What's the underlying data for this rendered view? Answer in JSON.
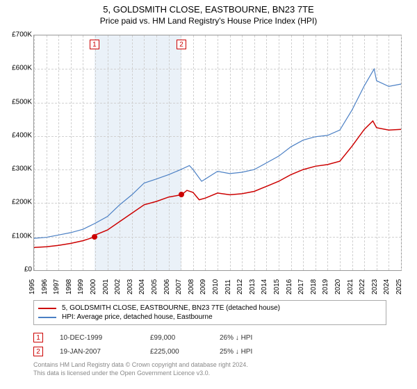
{
  "title": "5, GOLDSMITH CLOSE, EASTBOURNE, BN23 7TE",
  "subtitle": "Price paid vs. HM Land Registry's House Price Index (HPI)",
  "chart": {
    "type": "line",
    "ylim": [
      0,
      700000
    ],
    "ytick_step": 100000,
    "yticks": [
      "£0",
      "£100K",
      "£200K",
      "£300K",
      "£400K",
      "£500K",
      "£600K",
      "£700K"
    ],
    "xrange": [
      1995,
      2025
    ],
    "xticks": [
      1995,
      1996,
      1997,
      1998,
      1999,
      2000,
      2001,
      2002,
      2003,
      2004,
      2005,
      2006,
      2007,
      2008,
      2009,
      2010,
      2011,
      2012,
      2013,
      2014,
      2015,
      2016,
      2017,
      2018,
      2019,
      2020,
      2021,
      2022,
      2023,
      2024,
      2025
    ],
    "grid_color": "#d0d0d0",
    "border_color": "#999999",
    "background_color": "#ffffff",
    "shade_color": "#eaf1f8",
    "shade_from_year": 1999.94,
    "shade_to_year": 2007.05,
    "series": [
      {
        "name": "property",
        "label": "5, GOLDSMITH CLOSE, EASTBOURNE, BN23 7TE (detached house)",
        "color": "#cc0000",
        "line_width": 1.5,
        "points": [
          [
            1995,
            68000
          ],
          [
            1996,
            70000
          ],
          [
            1997,
            74000
          ],
          [
            1998,
            80000
          ],
          [
            1999,
            88000
          ],
          [
            1999.94,
            99000
          ],
          [
            2000,
            105000
          ],
          [
            2001,
            120000
          ],
          [
            2002,
            145000
          ],
          [
            2003,
            170000
          ],
          [
            2004,
            195000
          ],
          [
            2005,
            205000
          ],
          [
            2006,
            218000
          ],
          [
            2007.05,
            225000
          ],
          [
            2007.5,
            238000
          ],
          [
            2008,
            232000
          ],
          [
            2008.5,
            210000
          ],
          [
            2009,
            215000
          ],
          [
            2010,
            230000
          ],
          [
            2011,
            225000
          ],
          [
            2012,
            228000
          ],
          [
            2013,
            235000
          ],
          [
            2014,
            250000
          ],
          [
            2015,
            265000
          ],
          [
            2016,
            285000
          ],
          [
            2017,
            300000
          ],
          [
            2018,
            310000
          ],
          [
            2019,
            315000
          ],
          [
            2020,
            325000
          ],
          [
            2021,
            370000
          ],
          [
            2022,
            420000
          ],
          [
            2022.7,
            445000
          ],
          [
            2023,
            425000
          ],
          [
            2024,
            418000
          ],
          [
            2025,
            420000
          ]
        ]
      },
      {
        "name": "hpi",
        "label": "HPI: Average price, detached house, Eastbourne",
        "color": "#4a7fc4",
        "line_width": 1.2,
        "points": [
          [
            1995,
            95000
          ],
          [
            1996,
            98000
          ],
          [
            1997,
            105000
          ],
          [
            1998,
            112000
          ],
          [
            1999,
            122000
          ],
          [
            2000,
            140000
          ],
          [
            2001,
            160000
          ],
          [
            2002,
            195000
          ],
          [
            2003,
            225000
          ],
          [
            2004,
            260000
          ],
          [
            2005,
            272000
          ],
          [
            2006,
            285000
          ],
          [
            2007,
            300000
          ],
          [
            2007.7,
            312000
          ],
          [
            2008,
            300000
          ],
          [
            2008.7,
            265000
          ],
          [
            2009,
            272000
          ],
          [
            2010,
            295000
          ],
          [
            2011,
            288000
          ],
          [
            2012,
            292000
          ],
          [
            2013,
            300000
          ],
          [
            2014,
            320000
          ],
          [
            2015,
            340000
          ],
          [
            2016,
            368000
          ],
          [
            2017,
            388000
          ],
          [
            2018,
            398000
          ],
          [
            2019,
            402000
          ],
          [
            2020,
            418000
          ],
          [
            2021,
            478000
          ],
          [
            2022,
            550000
          ],
          [
            2022.8,
            600000
          ],
          [
            2023,
            565000
          ],
          [
            2024,
            548000
          ],
          [
            2025,
            555000
          ]
        ]
      }
    ],
    "markers": [
      {
        "id": "1",
        "year": 1999.94,
        "value": 99000
      },
      {
        "id": "2",
        "year": 2007.05,
        "value": 225000
      }
    ],
    "marker_box_color": "#cc0000",
    "dot_color": "#cc0000"
  },
  "legend_border": "#aaaaaa",
  "transactions": [
    {
      "id": "1",
      "date": "10-DEC-1999",
      "price": "£99,000",
      "pct": "26% ↓ HPI"
    },
    {
      "id": "2",
      "date": "19-JAN-2007",
      "price": "£225,000",
      "pct": "25% ↓ HPI"
    }
  ],
  "footer": {
    "line1": "Contains HM Land Registry data © Crown copyright and database right 2024.",
    "line2": "This data is licensed under the Open Government Licence v3.0."
  }
}
